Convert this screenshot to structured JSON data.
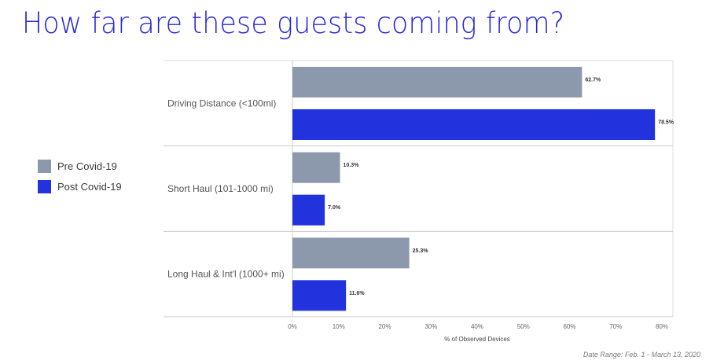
{
  "header": {
    "title": "How far are these guests coming from?"
  },
  "legend": {
    "items": [
      {
        "label": "Pre Covid-19",
        "color": "#8c98ab"
      },
      {
        "label": "Post Covid-19",
        "color": "#2233dd"
      }
    ]
  },
  "footnote": {
    "text": "Date Range: Feb. 1 - March 13, 2020"
  },
  "chart_data": {
    "type": "bar",
    "orientation": "horizontal",
    "categories": [
      "Driving Distance (<100mi)",
      "Short Haul (101-1000 mi)",
      "Long Haul & Int'l (1000+ mi)"
    ],
    "series": [
      {
        "name": "Pre Covid-19",
        "values": [
          62.7,
          10.3,
          25.3
        ],
        "labels": [
          "62.7%",
          "10.3%",
          "25.3%"
        ],
        "color": "#8c98ab"
      },
      {
        "name": "Post Covid-19",
        "values": [
          78.5,
          7.0,
          11.6
        ],
        "labels": [
          "78.5%",
          "7.0%",
          "11.6%"
        ],
        "color": "#2233dd"
      }
    ],
    "xlim": [
      0,
      80
    ],
    "xticks": [
      "0%",
      "10%",
      "20%",
      "30%",
      "40%",
      "50%",
      "60%",
      "70%",
      "80%"
    ],
    "xlabel": "% of Observed Devices",
    "grid": false,
    "legend_position": "left"
  }
}
